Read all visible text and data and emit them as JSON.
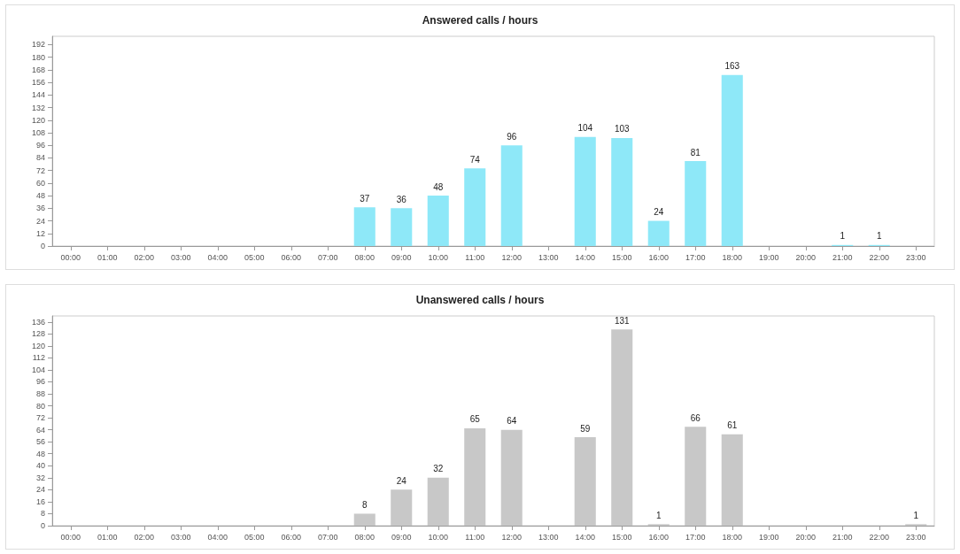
{
  "chart_data": [
    {
      "type": "bar",
      "title": "Answered calls / hours",
      "categories": [
        "00:00",
        "01:00",
        "02:00",
        "03:00",
        "04:00",
        "05:00",
        "06:00",
        "07:00",
        "08:00",
        "09:00",
        "10:00",
        "11:00",
        "12:00",
        "13:00",
        "14:00",
        "15:00",
        "16:00",
        "17:00",
        "18:00",
        "19:00",
        "20:00",
        "21:00",
        "22:00",
        "23:00"
      ],
      "values": [
        null,
        null,
        null,
        null,
        null,
        null,
        null,
        null,
        37,
        36,
        48,
        74,
        96,
        null,
        104,
        103,
        24,
        81,
        163,
        null,
        null,
        1,
        1,
        null
      ],
      "color": "#8ee8f8",
      "ylim": [
        0,
        200
      ],
      "yticks": [
        0,
        12,
        24,
        36,
        48,
        60,
        72,
        84,
        96,
        108,
        120,
        132,
        144,
        156,
        168,
        180,
        192
      ],
      "grid": false,
      "data_labels": true
    },
    {
      "type": "bar",
      "title": "Unanswered calls / hours",
      "categories": [
        "00:00",
        "01:00",
        "02:00",
        "03:00",
        "04:00",
        "05:00",
        "06:00",
        "07:00",
        "08:00",
        "09:00",
        "10:00",
        "11:00",
        "12:00",
        "13:00",
        "14:00",
        "15:00",
        "16:00",
        "17:00",
        "18:00",
        "19:00",
        "20:00",
        "21:00",
        "22:00",
        "23:00"
      ],
      "values": [
        null,
        null,
        null,
        null,
        null,
        null,
        null,
        null,
        8,
        24,
        32,
        65,
        64,
        null,
        59,
        131,
        1,
        66,
        61,
        null,
        null,
        null,
        null,
        1
      ],
      "color": "#c8c8c8",
      "ylim": [
        0,
        140
      ],
      "yticks": [
        0,
        8,
        16,
        24,
        32,
        40,
        48,
        56,
        64,
        72,
        80,
        88,
        96,
        104,
        112,
        120,
        128,
        136
      ],
      "grid": false,
      "data_labels": true
    }
  ]
}
